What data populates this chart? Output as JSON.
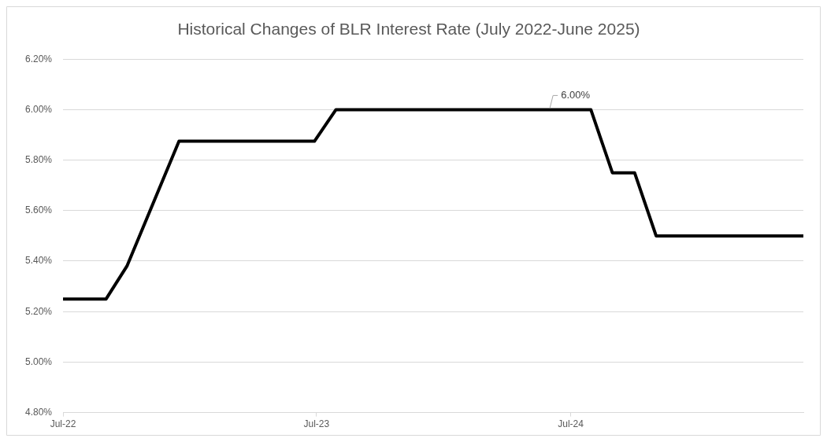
{
  "chart_data": {
    "type": "line",
    "title": "Historical Changes of BLR Interest Rate (July 2022-June 2025)",
    "x": [
      "2022-07-01",
      "2022-09-01",
      "2022-10-01",
      "2022-12-15",
      "2023-06-28",
      "2023-07-29",
      "2024-07-30",
      "2024-08-30",
      "2024-10-01",
      "2024-11-01",
      "2025-06-01"
    ],
    "series": [
      {
        "color": "#000000",
        "values": [
          5.25,
          5.25,
          5.38,
          5.875,
          5.875,
          6.0,
          6.0,
          5.75,
          5.75,
          5.5,
          5.5
        ]
      }
    ],
    "xlim": [
      "2022-07-01",
      "2025-06-01"
    ],
    "xticks": [
      {
        "value": "2022-07-01",
        "label": "Jul-22"
      },
      {
        "value": "2023-07-01",
        "label": "Jul-23"
      },
      {
        "value": "2024-07-01",
        "label": "Jul-24"
      }
    ],
    "ylim": [
      4.8,
      6.2
    ],
    "yticks": [
      {
        "value": 4.8,
        "label": "4.80%"
      },
      {
        "value": 5.0,
        "label": "5.00%"
      },
      {
        "value": 5.2,
        "label": "5.20%"
      },
      {
        "value": 5.4,
        "label": "5.40%"
      },
      {
        "value": 5.6,
        "label": "5.60%"
      },
      {
        "value": 5.8,
        "label": "5.80%"
      },
      {
        "value": 6.0,
        "label": "6.00%"
      },
      {
        "value": 6.2,
        "label": "6.20%"
      }
    ],
    "annotations": [
      {
        "text": "6.00%",
        "x": "2024-06-01",
        "y": 6.0
      }
    ],
    "grid": "y",
    "legend": false,
    "marker": "none",
    "line_style": "solid"
  }
}
